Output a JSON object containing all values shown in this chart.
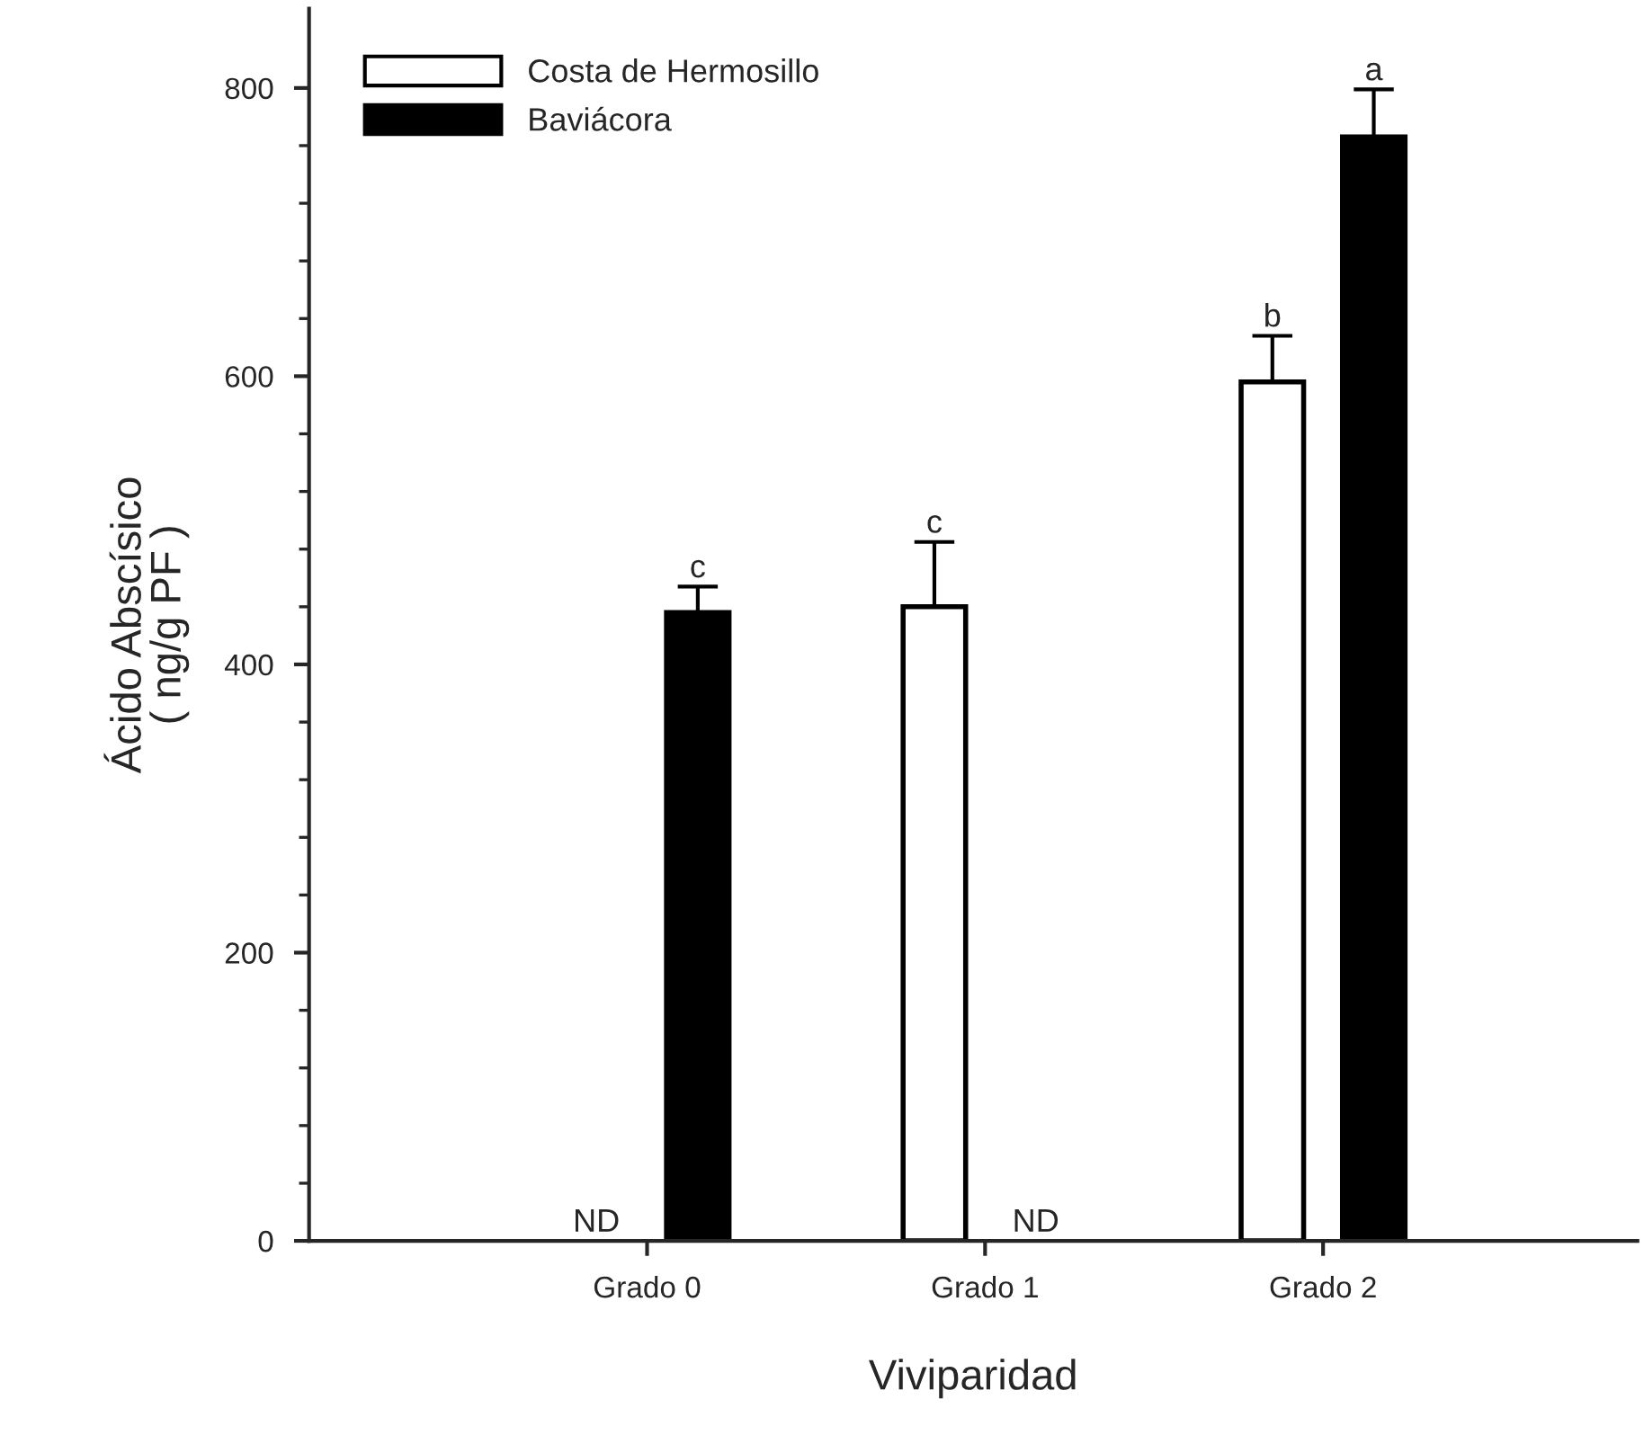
{
  "chart_data": {
    "type": "bar",
    "xlabel": "Viviparidad",
    "ylabel": "Ácido Abscísico\n( ng/g PF )",
    "categories": [
      "Grado 0",
      "Grado 1",
      "Grado 2"
    ],
    "series": [
      {
        "name": "Costa de Hermosillo",
        "color": "#ffffff",
        "values": [
          null,
          440,
          596
        ],
        "value_labels": [
          "ND",
          "c",
          "b"
        ],
        "errors": [
          null,
          [
            440,
            485
          ],
          [
            596,
            628
          ]
        ]
      },
      {
        "name": "Baviácora",
        "color": "#000000",
        "values": [
          436,
          null,
          766
        ],
        "value_labels": [
          "c",
          "ND",
          "a"
        ],
        "errors": [
          [
            436,
            454
          ],
          null,
          [
            766,
            799
          ]
        ]
      }
    ],
    "ylim": [
      0,
      855
    ],
    "yticks": [
      0,
      200,
      400,
      600,
      800
    ],
    "legend": "top left",
    "grid": false
  }
}
